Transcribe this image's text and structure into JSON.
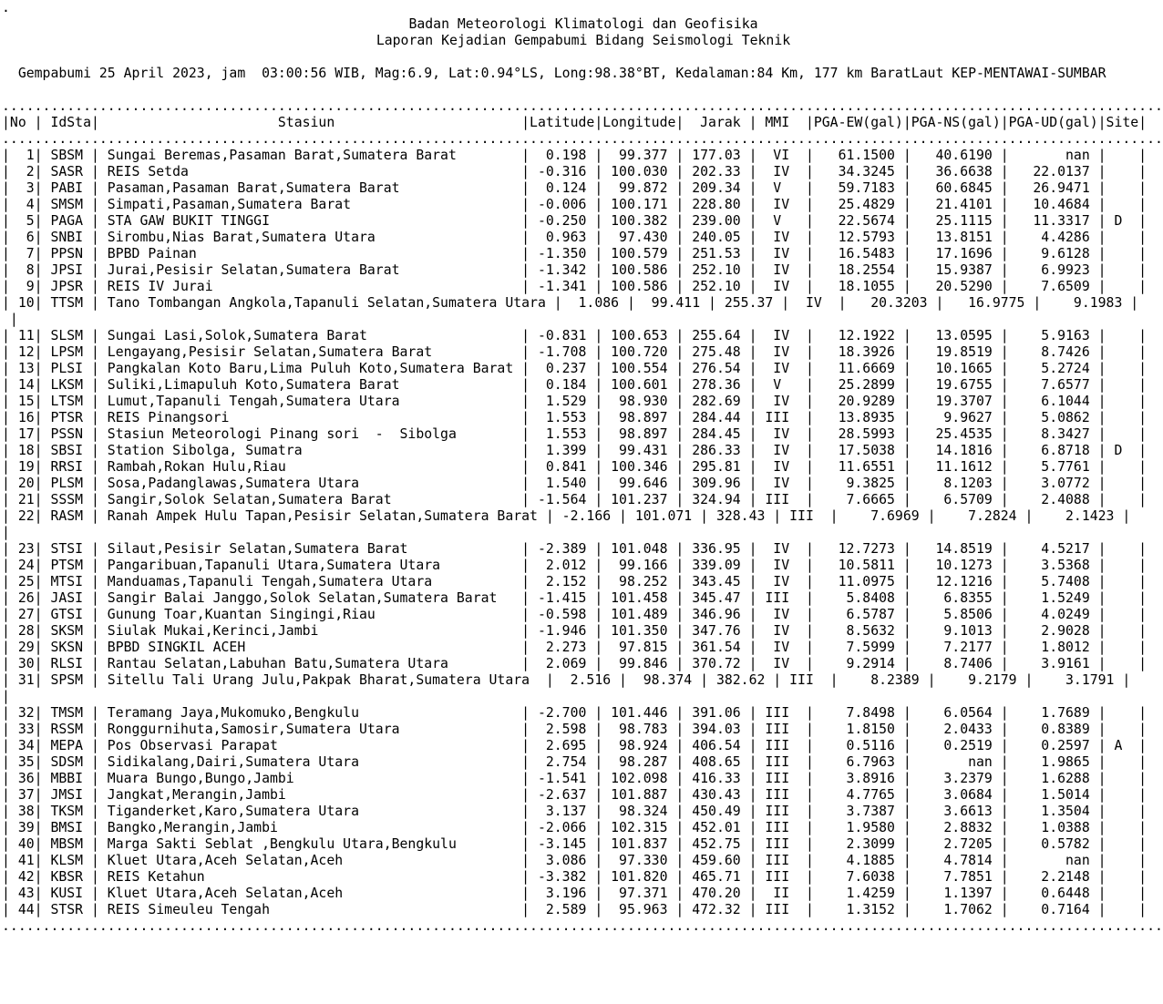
{
  "report": {
    "stray_mark": ".",
    "agency": "Badan Meteorologi Klimatologi dan Geofisika",
    "report_title": "Laporan Kejadian Gempabumi Bidang Seismologi Teknik",
    "event_summary": "Gempabumi 25 April 2023, jam  03:00:56 WIB, Mag:6.9, Lat:0.94°LS, Long:98.38°BT, Kedalaman:84 Km, 177 km BaratLaut KEP-MENTAWAI-SUMBAR",
    "event": {
      "date": "25 April 2023",
      "time": "03:00:56 WIB",
      "magnitude": "6.9",
      "latitude": "0.94°LS",
      "longitude": "98.38°BT",
      "depth": "84 Km",
      "location": "177 km BaratLaut KEP-MENTAWAI-SUMBAR"
    }
  },
  "separator": {
    "char": ".",
    "length": 143
  },
  "layout": {
    "wrap_width": 143,
    "station_field_width": 50
  },
  "table": {
    "columns": [
      "No",
      "IdSta",
      "Stasiun",
      "Latitude",
      "Longitude",
      "Jarak",
      "MMI",
      "PGA-EW(gal)",
      "PGA-NS(gal)",
      "PGA-UD(gal)",
      "Site"
    ],
    "rows": [
      [
        "1",
        "SBSM",
        "Sungai Beremas,Pasaman Barat,Sumatera Barat",
        "0.198",
        "99.377",
        "177.03",
        "VI",
        "61.1500",
        "40.6190",
        "nan",
        ""
      ],
      [
        "2",
        "SASR",
        "REIS Setda",
        "-0.316",
        "100.030",
        "202.33",
        "IV",
        "34.3245",
        "36.6638",
        "22.0137",
        ""
      ],
      [
        "3",
        "PABI",
        "Pasaman,Pasaman Barat,Sumatera Barat",
        "0.124",
        "99.872",
        "209.34",
        "V",
        "59.7183",
        "60.6845",
        "26.9471",
        ""
      ],
      [
        "4",
        "SMSM",
        "Simpati,Pasaman,Sumatera Barat",
        "-0.006",
        "100.171",
        "228.80",
        "IV",
        "25.4829",
        "21.4101",
        "10.4684",
        ""
      ],
      [
        "5",
        "PAGA",
        "STA GAW BUKIT TINGGI",
        "-0.250",
        "100.382",
        "239.00",
        "V",
        "22.5674",
        "25.1115",
        "11.3317",
        "D"
      ],
      [
        "6",
        "SNBI",
        "Sirombu,Nias Barat,Sumatera Utara",
        "0.963",
        "97.430",
        "240.05",
        "IV",
        "12.5793",
        "13.8151",
        "4.4286",
        ""
      ],
      [
        "7",
        "PPSN",
        "BPBD Painan",
        "-1.350",
        "100.579",
        "251.53",
        "IV",
        "16.5483",
        "17.1696",
        "9.6128",
        ""
      ],
      [
        "8",
        "JPSI",
        "Jurai,Pesisir Selatan,Sumatera Barat",
        "-1.342",
        "100.586",
        "252.10",
        "IV",
        "18.2554",
        "15.9387",
        "6.9923",
        ""
      ],
      [
        "9",
        "JPSR",
        "REIS IV Jurai",
        "-1.341",
        "100.586",
        "252.10",
        "IV",
        "18.1055",
        "20.5290",
        "7.6509",
        ""
      ],
      [
        "10",
        "TTSM",
        "Tano Tombangan Angkola,Tapanuli Selatan,Sumatera Utara",
        "1.086",
        "99.411",
        "255.37",
        "IV",
        "20.3203",
        "16.9775",
        "9.1983",
        ""
      ],
      [
        "11",
        "SLSM",
        "Sungai Lasi,Solok,Sumatera Barat",
        "-0.831",
        "100.653",
        "255.64",
        "IV",
        "12.1922",
        "13.0595",
        "5.9163",
        ""
      ],
      [
        "12",
        "LPSM",
        "Lengayang,Pesisir Selatan,Sumatera Barat",
        "-1.708",
        "100.720",
        "275.48",
        "IV",
        "18.3926",
        "19.8519",
        "8.7426",
        ""
      ],
      [
        "13",
        "PLSI",
        "Pangkalan Koto Baru,Lima Puluh Koto,Sumatera Barat",
        "0.237",
        "100.554",
        "276.54",
        "IV",
        "11.6669",
        "10.1665",
        "5.2724",
        ""
      ],
      [
        "14",
        "LKSM",
        "Suliki,Limapuluh Koto,Sumatera Barat",
        "0.184",
        "100.601",
        "278.36",
        "V",
        "25.2899",
        "19.6755",
        "7.6577",
        ""
      ],
      [
        "15",
        "LTSM",
        "Lumut,Tapanuli Tengah,Sumatera Utara",
        "1.529",
        "98.930",
        "282.69",
        "IV",
        "20.9289",
        "19.3707",
        "6.1044",
        ""
      ],
      [
        "16",
        "PTSR",
        "REIS Pinangsori",
        "1.553",
        "98.897",
        "284.44",
        "III",
        "13.8935",
        "9.9627",
        "5.0862",
        ""
      ],
      [
        "17",
        "PSSN",
        "Stasiun Meteorologi Pinang sori  -  Sibolga",
        "1.553",
        "98.897",
        "284.45",
        "IV",
        "28.5993",
        "25.4535",
        "8.3427",
        ""
      ],
      [
        "18",
        "SBSI",
        "Station Sibolga, Sumatra",
        "1.399",
        "99.431",
        "286.33",
        "IV",
        "17.5038",
        "14.1816",
        "6.8718",
        "D"
      ],
      [
        "19",
        "RRSI",
        "Rambah,Rokan Hulu,Riau",
        "0.841",
        "100.346",
        "295.81",
        "IV",
        "11.6551",
        "11.1612",
        "5.7761",
        ""
      ],
      [
        "20",
        "PLSM",
        "Sosa,Padanglawas,Sumatera Utara",
        "1.540",
        "99.646",
        "309.96",
        "IV",
        "9.3825",
        "8.1203",
        "3.0772",
        ""
      ],
      [
        "21",
        "SSSM",
        "Sangir,Solok Selatan,Sumatera Barat",
        "-1.564",
        "101.237",
        "324.94",
        "III",
        "7.6665",
        "6.5709",
        "2.4088",
        ""
      ],
      [
        "22",
        "RASM",
        "Ranah Ampek Hulu Tapan,Pesisir Selatan,Sumatera Barat",
        "-2.166",
        "101.071",
        "328.43",
        "III",
        "7.6969",
        "7.2824",
        "2.1423",
        ""
      ],
      [
        "23",
        "STSI",
        "Silaut,Pesisir Selatan,Sumatera Barat",
        "-2.389",
        "101.048",
        "336.95",
        "IV",
        "12.7273",
        "14.8519",
        "4.5217",
        ""
      ],
      [
        "24",
        "PTSM",
        "Pangaribuan,Tapanuli Utara,Sumatera Utara",
        "2.012",
        "99.166",
        "339.09",
        "IV",
        "10.5811",
        "10.1273",
        "3.5368",
        ""
      ],
      [
        "25",
        "MTSI",
        "Manduamas,Tapanuli Tengah,Sumatera Utara",
        "2.152",
        "98.252",
        "343.45",
        "IV",
        "11.0975",
        "12.1216",
        "5.7408",
        ""
      ],
      [
        "26",
        "JASI",
        "Sangir Balai Janggo,Solok Selatan,Sumatera Barat",
        "-1.415",
        "101.458",
        "345.47",
        "III",
        "5.8408",
        "6.8355",
        "1.5249",
        ""
      ],
      [
        "27",
        "GTSI",
        "Gunung Toar,Kuantan Singingi,Riau",
        "-0.598",
        "101.489",
        "346.96",
        "IV",
        "6.5787",
        "5.8506",
        "4.0249",
        ""
      ],
      [
        "28",
        "SKSM",
        "Siulak Mukai,Kerinci,Jambi",
        "-1.946",
        "101.350",
        "347.76",
        "IV",
        "8.5632",
        "9.1013",
        "2.9028",
        ""
      ],
      [
        "29",
        "SKSN",
        "BPBD SINGKIL ACEH",
        "2.273",
        "97.815",
        "361.54",
        "IV",
        "7.5999",
        "7.2177",
        "1.8012",
        ""
      ],
      [
        "30",
        "RLSI",
        "Rantau Selatan,Labuhan Batu,Sumatera Utara",
        "2.069",
        "99.846",
        "370.72",
        "IV",
        "9.2914",
        "8.7406",
        "3.9161",
        ""
      ],
      [
        "31",
        "SPSM",
        "Sitellu Tali Urang Julu,Pakpak Bharat,Sumatera Utara ",
        "2.516",
        "98.374",
        "382.62",
        "III",
        "8.2389",
        "9.2179",
        "3.1791",
        ""
      ],
      [
        "32",
        "TMSM",
        "Teramang Jaya,Mukomuko,Bengkulu",
        "-2.700",
        "101.446",
        "391.06",
        "III",
        "7.8498",
        "6.0564",
        "1.7689",
        ""
      ],
      [
        "33",
        "RSSM",
        "Ronggurnihuta,Samosir,Sumatera Utara",
        "2.598",
        "98.783",
        "394.03",
        "III",
        "1.8150",
        "2.0433",
        "0.8389",
        ""
      ],
      [
        "34",
        "MEPA",
        "Pos Observasi Parapat",
        "2.695",
        "98.924",
        "406.54",
        "III",
        "0.5116",
        "0.2519",
        "0.2597",
        "A"
      ],
      [
        "35",
        "SDSM",
        "Sidikalang,Dairi,Sumatera Utara",
        "2.754",
        "98.287",
        "408.65",
        "III",
        "6.7963",
        "nan",
        "1.9865",
        ""
      ],
      [
        "36",
        "MBBI",
        "Muara Bungo,Bungo,Jambi",
        "-1.541",
        "102.098",
        "416.33",
        "III",
        "3.8916",
        "3.2379",
        "1.6288",
        ""
      ],
      [
        "37",
        "JMSI",
        "Jangkat,Merangin,Jambi",
        "-2.637",
        "101.887",
        "430.43",
        "III",
        "4.7765",
        "3.0684",
        "1.5014",
        ""
      ],
      [
        "38",
        "TKSM",
        "Tiganderket,Karo,Sumatera Utara",
        "3.137",
        "98.324",
        "450.49",
        "III",
        "3.7387",
        "3.6613",
        "1.3504",
        ""
      ],
      [
        "39",
        "BMSI",
        "Bangko,Merangin,Jambi",
        "-2.066",
        "102.315",
        "452.01",
        "III",
        "1.9580",
        "2.8832",
        "1.0388",
        ""
      ],
      [
        "40",
        "MBSM",
        "Marga Sakti Seblat ,Bengkulu Utara,Bengkulu",
        "-3.145",
        "101.837",
        "452.75",
        "III",
        "2.3099",
        "2.7205",
        "0.5782",
        ""
      ],
      [
        "41",
        "KLSM",
        "Kluet Utara,Aceh Selatan,Aceh",
        "3.086",
        "97.330",
        "459.60",
        "III",
        "4.1885",
        "4.7814",
        "nan",
        ""
      ],
      [
        "42",
        "KBSR",
        "REIS Ketahun",
        "-3.382",
        "101.820",
        "465.71",
        "III",
        "7.6038",
        "7.7851",
        "2.2148",
        ""
      ],
      [
        "43",
        "KUSI",
        "Kluet Utara,Aceh Selatan,Aceh",
        "3.196",
        "97.371",
        "470.20",
        "II",
        "1.4259",
        "1.1397",
        "0.6448",
        ""
      ],
      [
        "44",
        "STSR",
        "REIS Simeuleu Tengah",
        "2.589",
        "95.963",
        "472.32",
        "III",
        "1.3152",
        "1.7062",
        "0.7164",
        ""
      ]
    ]
  }
}
